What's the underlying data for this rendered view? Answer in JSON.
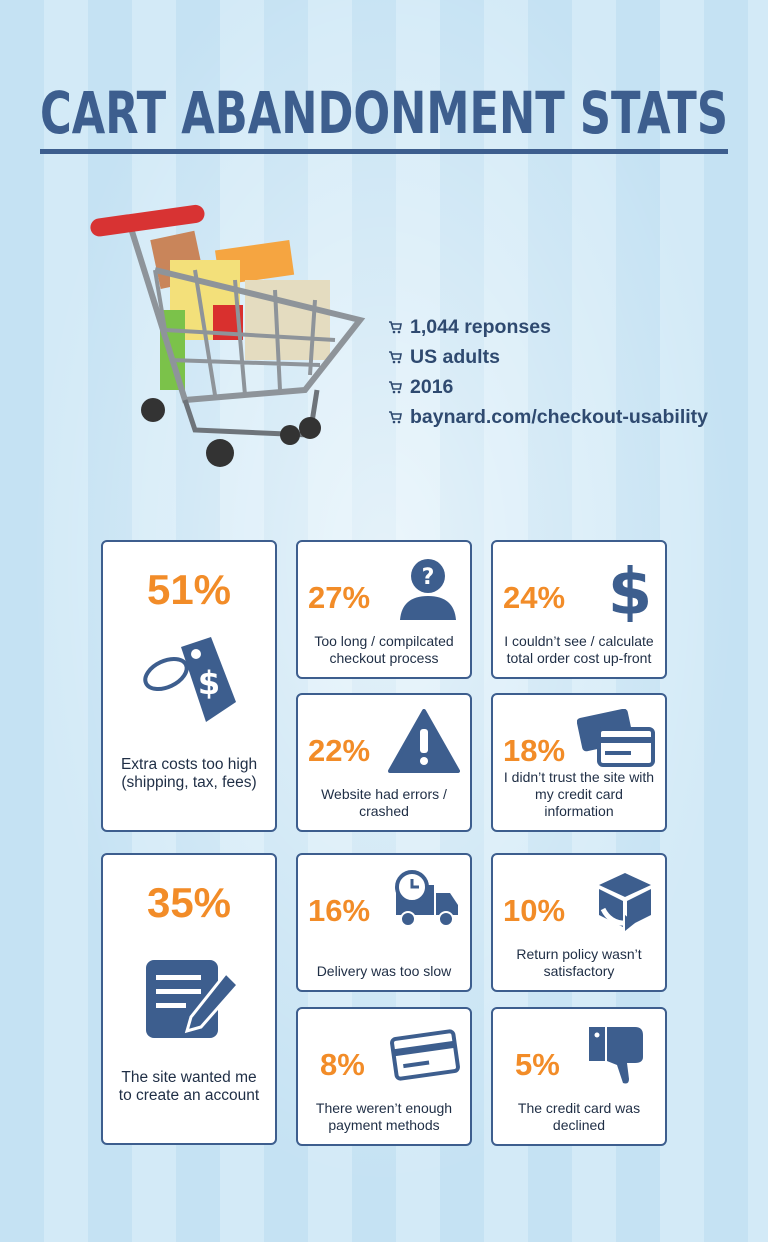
{
  "header": {
    "title": "CART ABANDONMENT STATS"
  },
  "survey": {
    "items": [
      "1,044 reponses",
      "US adults",
      "2016",
      "baynard.com/checkout-usability"
    ]
  },
  "stats": [
    {
      "percent": "51%",
      "label": "Extra costs too high (shipping, tax, fees)"
    },
    {
      "percent": "27%",
      "label": "Too long / compilcated checkout process"
    },
    {
      "percent": "24%",
      "label": "I couldn’t see / calculate total order cost up-front"
    },
    {
      "percent": "22%",
      "label": "Website had errors / crashed"
    },
    {
      "percent": "18%",
      "label": "I didn’t trust the site with my credit card information"
    },
    {
      "percent": "35%",
      "label": "The site wanted me to create an account"
    },
    {
      "percent": "16%",
      "label": "Delivery was too slow"
    },
    {
      "percent": "10%",
      "label": "Return policy wasn’t satisfactory"
    },
    {
      "percent": "8%",
      "label": "There weren’t enough payment methods"
    },
    {
      "percent": "5%",
      "label": "The credit card was declined"
    }
  ]
}
